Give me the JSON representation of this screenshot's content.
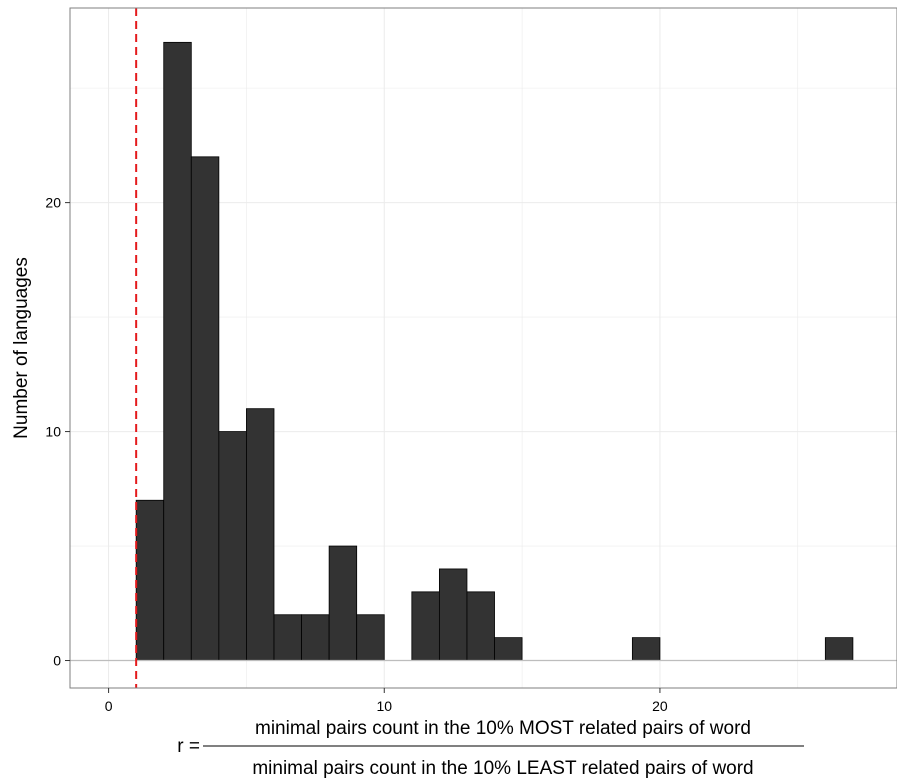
{
  "chart_data": {
    "type": "bar",
    "subtype": "histogram",
    "bin_width": 1,
    "bins": [
      {
        "start": 1,
        "end": 2,
        "count": 7
      },
      {
        "start": 2,
        "end": 3,
        "count": 27
      },
      {
        "start": 3,
        "end": 4,
        "count": 22
      },
      {
        "start": 4,
        "end": 5,
        "count": 10
      },
      {
        "start": 5,
        "end": 6,
        "count": 11
      },
      {
        "start": 6,
        "end": 7,
        "count": 2
      },
      {
        "start": 7,
        "end": 8,
        "count": 2
      },
      {
        "start": 8,
        "end": 9,
        "count": 5
      },
      {
        "start": 9,
        "end": 10,
        "count": 2
      },
      {
        "start": 11,
        "end": 12,
        "count": 3
      },
      {
        "start": 12,
        "end": 13,
        "count": 4
      },
      {
        "start": 13,
        "end": 14,
        "count": 3
      },
      {
        "start": 14,
        "end": 15,
        "count": 1
      },
      {
        "start": 19,
        "end": 20,
        "count": 1
      },
      {
        "start": 26,
        "end": 27,
        "count": 1
      }
    ],
    "xlim": [
      -1.4,
      28.6
    ],
    "ylim": [
      -1.2,
      28.5
    ],
    "x_ticks": [
      0,
      10,
      20
    ],
    "y_ticks": [
      0,
      10,
      20
    ],
    "x_tick_labels": [
      "0",
      "10",
      "20"
    ],
    "y_tick_labels": [
      "0",
      "10",
      "20"
    ],
    "ylabel": "Number of languages",
    "xlabel": {
      "prefix": "r =",
      "numerator": "minimal pairs count in the 10% MOST related pairs of word",
      "denominator": "minimal pairs count in the 10% LEAST related pairs of word"
    },
    "reference_line": {
      "x": 1,
      "style": "dashed",
      "color": "#e41a1c"
    },
    "colors": {
      "bar_fill": "#333333",
      "bar_edge": "#000000",
      "grid": "#ebebeb",
      "baseline": "#bdbdbd"
    },
    "grid": true,
    "legend": "none"
  }
}
